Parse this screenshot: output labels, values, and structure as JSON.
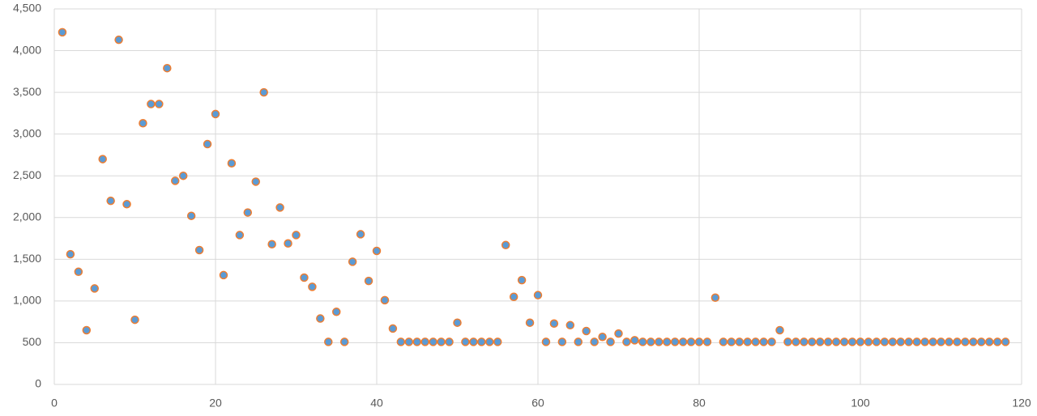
{
  "chart_data": {
    "type": "scatter",
    "x": [
      1,
      2,
      3,
      4,
      5,
      6,
      7,
      8,
      9,
      10,
      11,
      12,
      13,
      14,
      15,
      16,
      17,
      18,
      19,
      20,
      21,
      22,
      23,
      24,
      25,
      26,
      27,
      28,
      29,
      30,
      31,
      32,
      33,
      34,
      35,
      36,
      37,
      38,
      39,
      40,
      41,
      42,
      43,
      44,
      45,
      46,
      47,
      48,
      49,
      50,
      51,
      52,
      53,
      54,
      55,
      56,
      57,
      58,
      59,
      60,
      61,
      62,
      63,
      64,
      65,
      66,
      67,
      68,
      69,
      70,
      71,
      72,
      73,
      74,
      75,
      76,
      77,
      78,
      79,
      80,
      81,
      82,
      83,
      84,
      85,
      86,
      87,
      88,
      89,
      90,
      91,
      92,
      93,
      94,
      95,
      96,
      97,
      98,
      99,
      100,
      101,
      102,
      103,
      104,
      105,
      106,
      107,
      108,
      109,
      110,
      111,
      112,
      113,
      114,
      115,
      116,
      117,
      118
    ],
    "values": [
      4220,
      1560,
      1350,
      650,
      1150,
      2700,
      2200,
      4130,
      2160,
      775,
      3130,
      3360,
      3360,
      3790,
      2440,
      2500,
      2020,
      1610,
      2880,
      3240,
      1310,
      2650,
      1790,
      2060,
      2430,
      3500,
      1680,
      2120,
      1690,
      1790,
      1280,
      1170,
      790,
      510,
      870,
      510,
      1470,
      1800,
      1240,
      1600,
      1010,
      670,
      510,
      510,
      510,
      510,
      510,
      510,
      510,
      740,
      510,
      510,
      510,
      510,
      510,
      1670,
      1050,
      1250,
      740,
      1070,
      510,
      730,
      510,
      710,
      510,
      640,
      510,
      570,
      510,
      610,
      510,
      530,
      510,
      510,
      510,
      510,
      510,
      510,
      510,
      510,
      510,
      1040,
      510,
      510,
      510,
      510,
      510,
      510,
      510,
      650,
      510,
      510,
      510,
      510,
      510,
      510,
      510,
      510,
      510,
      510,
      510,
      510,
      510,
      510,
      510,
      510,
      510,
      510,
      510,
      510,
      510,
      510,
      510,
      510,
      510,
      510,
      510,
      510
    ],
    "color": "#5b9bd5",
    "edgecolor": "#ed7d31",
    "xlim": [
      0,
      120
    ],
    "xticks": [
      0,
      20,
      40,
      60,
      80,
      100,
      120
    ],
    "ylim": [
      0,
      4500
    ],
    "yticks": [
      0,
      500,
      {
        "value": 1000,
        "label": "1,000"
      },
      {
        "value": 1500,
        "label": "1,500"
      },
      {
        "value": 2000,
        "label": "2,000"
      },
      {
        "value": 2500,
        "label": "2,500"
      },
      {
        "value": 3000,
        "label": "3,000"
      },
      {
        "value": 3500,
        "label": "3,500"
      },
      {
        "value": 4000,
        "label": "4,000"
      },
      {
        "value": 4500,
        "label": "4,500"
      }
    ],
    "grid": true
  }
}
